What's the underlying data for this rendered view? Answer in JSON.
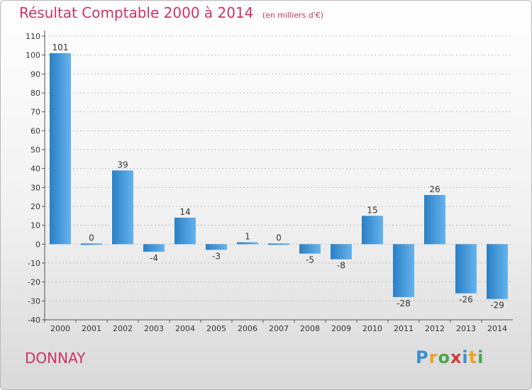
{
  "chart_data": {
    "type": "bar",
    "title": "Résultat Comptable 2000 à 2014",
    "subtitle": "(en milliers d'€)",
    "categories": [
      "2000",
      "2001",
      "2002",
      "2003",
      "2004",
      "2005",
      "2006",
      "2007",
      "2008",
      "2009",
      "2010",
      "2011",
      "2012",
      "2013",
      "2014"
    ],
    "values": [
      101,
      0,
      39,
      -4,
      14,
      -3,
      1,
      0,
      -5,
      -8,
      15,
      -28,
      26,
      -26,
      -29
    ],
    "value_labels": [
      "101",
      "0",
      "39",
      "-4",
      "14",
      "-3",
      "1",
      "0",
      "-5",
      "-8",
      "15",
      "-28",
      "26",
      "-26",
      "-29"
    ],
    "ylim": [
      -40,
      110
    ],
    "yticks": [
      -40,
      -30,
      -20,
      -10,
      0,
      10,
      20,
      30,
      40,
      50,
      60,
      70,
      80,
      90,
      100,
      110
    ],
    "ytick_labels": [
      "-40",
      "-30",
      "-20",
      "-10",
      "0",
      "10",
      "20",
      "30",
      "40",
      "50",
      "60",
      "70",
      "80",
      "90",
      "100",
      "110"
    ],
    "grid": true,
    "bar_color_light": "#66b3ee",
    "bar_color_dark": "#2a7fc4"
  },
  "footer": {
    "city": "DONNAY",
    "logo": [
      "P",
      "r",
      "o",
      "x",
      "i",
      "t",
      "i"
    ],
    "logo_colors": [
      "#3a8fd0",
      "#f0a020",
      "#4aa64a",
      "#d03a3a",
      "#3a8fd0",
      "#f0a020",
      "#4aa64a"
    ]
  }
}
